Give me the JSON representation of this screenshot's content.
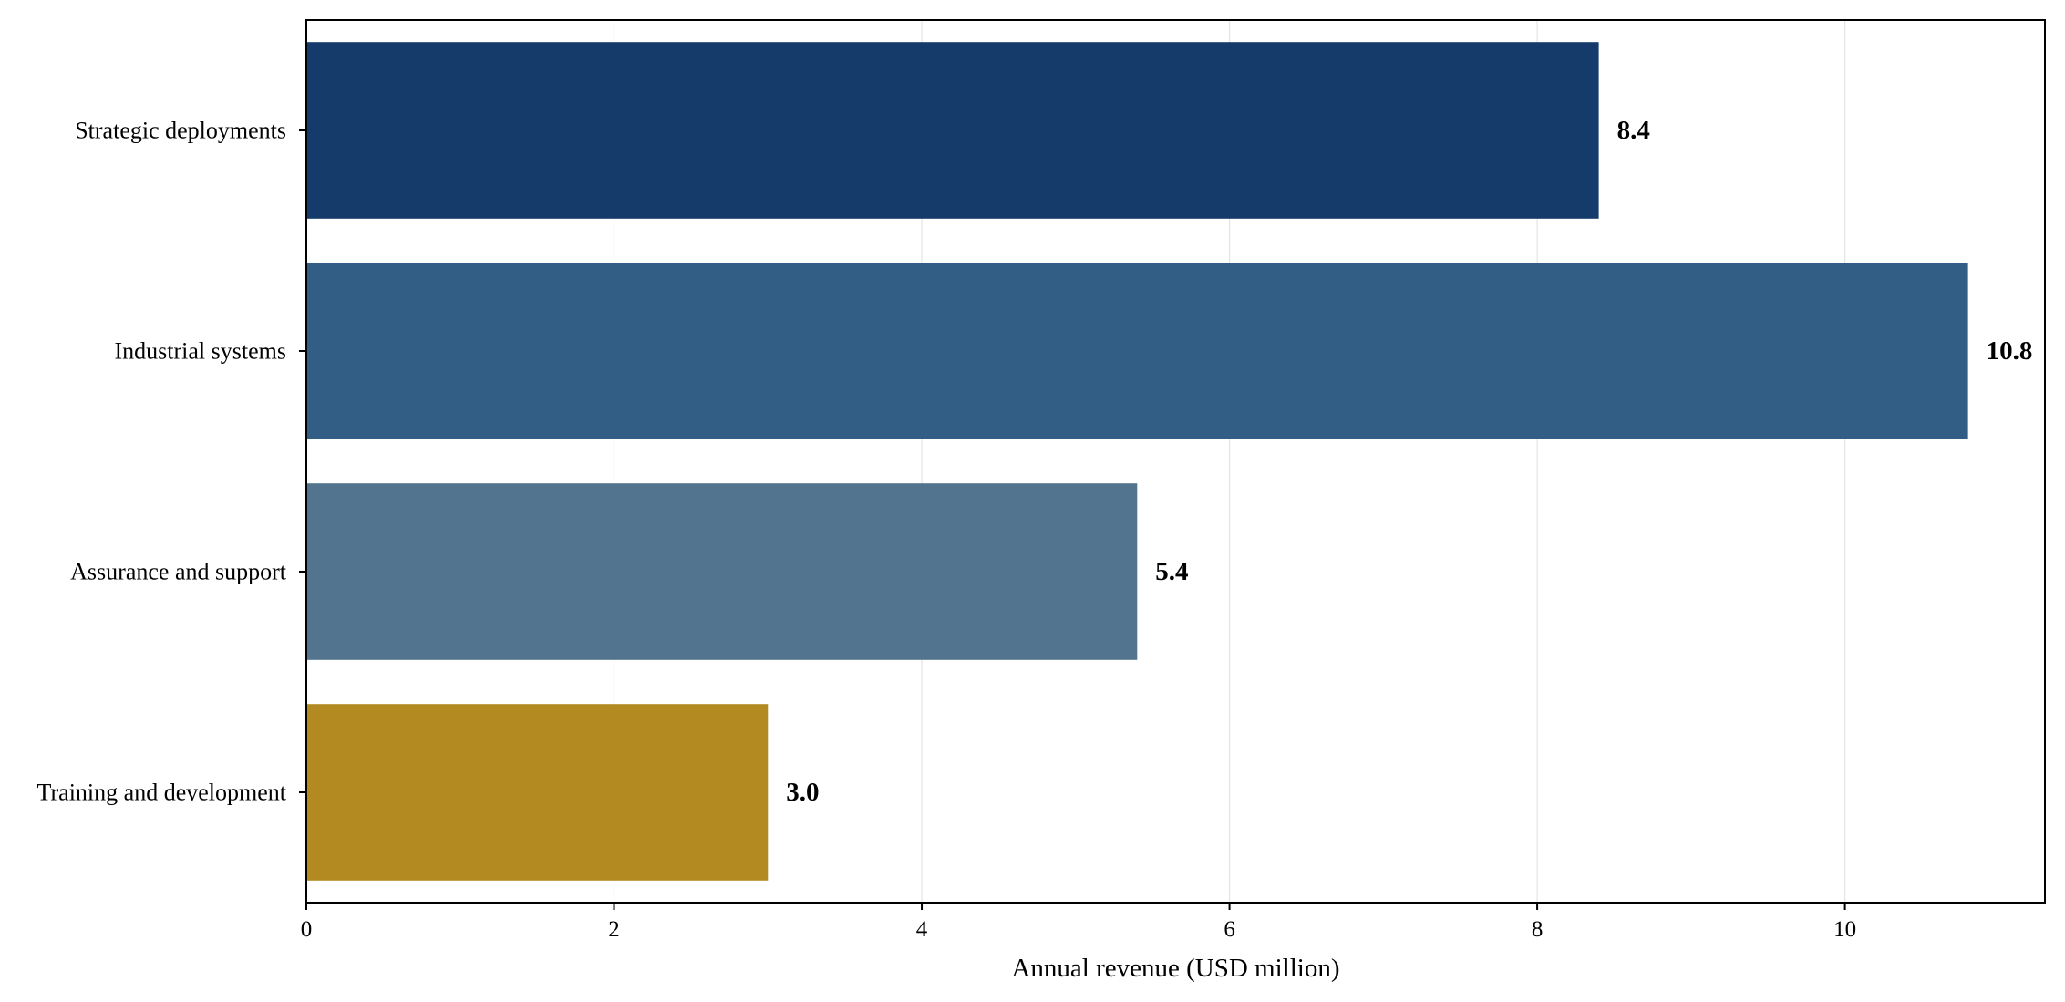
{
  "chart_data": {
    "type": "bar",
    "orientation": "horizontal",
    "title": "",
    "xlabel": "Annual revenue (USD million)",
    "ylabel": "",
    "categories": [
      "Strategic deployments",
      "Industrial systems",
      "Assurance and support",
      "Training and development"
    ],
    "values": [
      8.4,
      10.8,
      5.4,
      3.0
    ],
    "value_labels": [
      "8.4",
      "10.8",
      "5.4",
      "3.0"
    ],
    "bar_colors": [
      "#143b6a",
      "#325d84",
      "#52748f",
      "#b38a21"
    ],
    "xlim": [
      0,
      11.3
    ],
    "xticks": [
      0,
      2,
      4,
      6,
      8,
      10
    ],
    "xtick_labels": [
      "0",
      "2",
      "4",
      "6",
      "8",
      "10"
    ],
    "grid": "vertical",
    "legend": "none"
  }
}
